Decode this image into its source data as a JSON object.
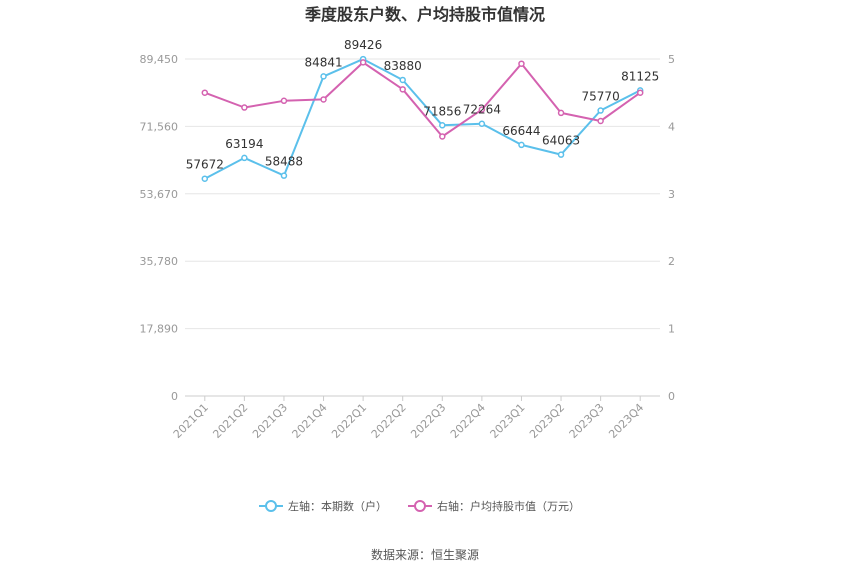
{
  "chart_data": {
    "type": "line",
    "title": "季度股东户数、户均持股市值情况",
    "categories": [
      "2021Q1",
      "2021Q2",
      "2021Q3",
      "2021Q4",
      "2022Q1",
      "2022Q2",
      "2022Q3",
      "2022Q4",
      "2023Q1",
      "2023Q2",
      "2023Q3",
      "2023Q4"
    ],
    "series": [
      {
        "name": "左轴：本期数（户）",
        "axis": "left",
        "color": "#5bc0eb",
        "values": [
          57672,
          63194,
          58488,
          84841,
          89426,
          83880,
          71856,
          72264,
          66644,
          64063,
          75770,
          81125
        ],
        "labels": [
          "57672",
          "63194",
          "58488",
          "84841",
          "89426",
          "83880",
          "71856",
          "72264",
          "66644",
          "64063",
          "75770",
          "81125"
        ]
      },
      {
        "name": "右轴：户均持股市值（万元）",
        "axis": "right",
        "color": "#d462b0",
        "values": [
          4.5,
          4.28,
          4.38,
          4.4,
          4.95,
          4.55,
          3.85,
          4.25,
          4.93,
          4.2,
          4.08,
          4.5
        ]
      }
    ],
    "y_left": {
      "min": 0,
      "max": 89450,
      "ticks": [
        "0",
        "17,890",
        "35,780",
        "53,670",
        "71,560",
        "89,450"
      ]
    },
    "y_right": {
      "min": 0,
      "max": 5,
      "ticks": [
        "0",
        "1",
        "2",
        "3",
        "4",
        "5"
      ]
    },
    "grid": true,
    "legend_position": "bottom"
  },
  "source": "数据来源：恒生聚源"
}
